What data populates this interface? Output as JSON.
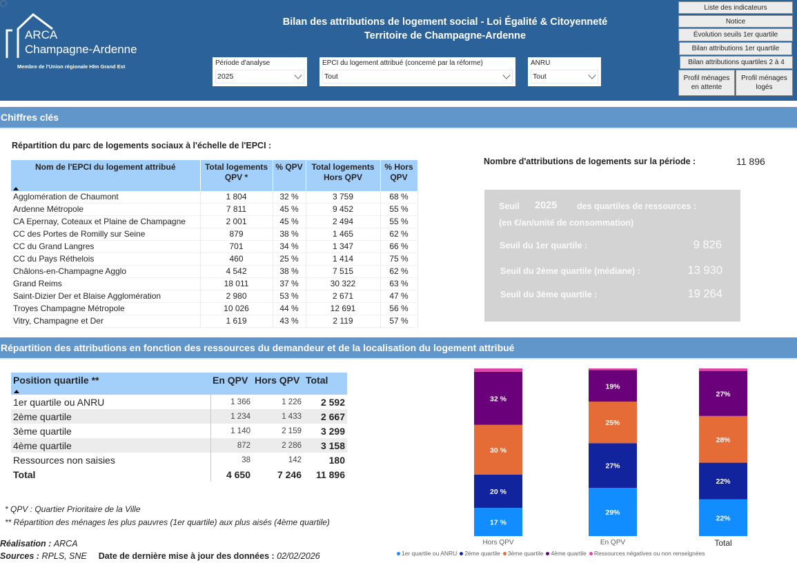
{
  "header": {
    "logo": {
      "line1": "ARCA",
      "line2": "Champagne-Ardenne",
      "tagline": "Membre de l'Union régionale Hlm Grand Est"
    },
    "title_line1": "Bilan des attributions de logement social - Loi Égalité & Citoyenneté",
    "title_line2": "Territoire de Champagne-Ardenne",
    "slicers": [
      {
        "label": "Période d'analyse",
        "value": "2025"
      },
      {
        "label": "EPCI du logement attribué (concerné par la réforme)",
        "value": "Tout"
      },
      {
        "label": "ANRU",
        "value": "Tout"
      }
    ],
    "nav_buttons": [
      "Liste des indicateurs",
      "Notice",
      "Évolution seuils 1er quartile",
      "Bilan attributions 1er quartile",
      "Bilan attributions quartiles 2 à 4",
      "Profil ménages en attente",
      "Profil ménages logés"
    ]
  },
  "section1": {
    "title": "Chiffres clés",
    "subtitle": "Répartition du parc de logements sociaux à l'échelle de l'EPCI :",
    "table": {
      "headers": [
        "Nom de l'EPCI du logement attribué",
        "Total logements QPV *",
        "% QPV",
        "Total logements Hors QPV",
        "% Hors QPV"
      ],
      "rows": [
        [
          "Agglomération de Chaumont",
          "1 804",
          "32 %",
          "3 759",
          "68 %"
        ],
        [
          "Ardenne Métropole",
          "7 811",
          "45 %",
          "9 452",
          "55 %"
        ],
        [
          "CA Epernay, Coteaux et Plaine de Champagne",
          "2 001",
          "45 %",
          "2 494",
          "55 %"
        ],
        [
          "CC des Portes de Romilly sur Seine",
          "879",
          "38 %",
          "1 465",
          "62 %"
        ],
        [
          "CC du Grand Langres",
          "701",
          "34 %",
          "1 347",
          "66 %"
        ],
        [
          "CC du Pays Réthelois",
          "460",
          "25 %",
          "1 414",
          "75 %"
        ],
        [
          "Châlons-en-Champagne Agglo",
          "4 542",
          "38 %",
          "7 515",
          "62 %"
        ],
        [
          "Grand Reims",
          "18 011",
          "37 %",
          "30 322",
          "63 %"
        ],
        [
          "Saint-Dizier Der et Blaise Agglomération",
          "2 980",
          "53 %",
          "2 671",
          "47 %"
        ],
        [
          "Troyes Champagne Métropole",
          "10 026",
          "44 %",
          "12 691",
          "56 %"
        ],
        [
          "Vitry, Champagne et Der",
          "1 619",
          "43 %",
          "2 119",
          "57 %"
        ]
      ]
    },
    "kpi": {
      "label": "Nombre d'attributions de logements sur la période :",
      "value": "11 896"
    },
    "seuils": {
      "title_prefix": "Seuil",
      "year": "2025",
      "title_suffix": "des quartiles de ressources :",
      "unit": "(en €/an/unité de consommation)",
      "items": [
        {
          "label": "Seuil du 1er quartile :",
          "value": "9 826"
        },
        {
          "label": "Seuil du 2ème quartile (médiane) :",
          "value": "13 930"
        },
        {
          "label": "Seuil du 3ème quartile :",
          "value": "19 264"
        }
      ]
    }
  },
  "section2": {
    "title": "Répartition des attributions en fonction des ressources du demandeur et de la localisation du logement attribué",
    "table": {
      "headers": [
        "Position quartile **",
        "En QPV",
        "Hors QPV",
        "Total"
      ],
      "rows": [
        [
          "1er quartile ou ANRU",
          "1 366",
          "1 226",
          "2 592"
        ],
        [
          "2ème quartile",
          "1 234",
          "1 433",
          "2 667"
        ],
        [
          "3ème quartile",
          "1 140",
          "2 159",
          "3 299"
        ],
        [
          "4ème quartile",
          "872",
          "2 286",
          "3 158"
        ],
        [
          "Ressources non saisies",
          "38",
          "142",
          "180"
        ]
      ],
      "total": [
        "Total",
        "4 650",
        "7 246",
        "11 896"
      ]
    },
    "notes": [
      "* QPV : Quartier Prioritaire de la Ville",
      "** Répartition des ménages les plus pauvres (1er quartile) aux plus aisés (4ème quartile)"
    ],
    "credits": {
      "realisation_label": "Réalisation :",
      "realisation_value": "ARCA",
      "sources_label": "Sources :",
      "sources_value": "RPLS, SNE",
      "update_label": "Date de dernière mise à jour des données :",
      "update_value": "02/02/2026"
    }
  },
  "chart_data": {
    "type": "bar",
    "stacked": "100%",
    "categories": [
      "Hors QPV",
      "En QPV",
      "Total"
    ],
    "series": [
      {
        "name": "1er quartile ou ANRU",
        "color": "#118dff",
        "values": [
          17,
          29,
          22
        ],
        "labels": [
          "17 %",
          "29%",
          "22%"
        ]
      },
      {
        "name": "2ème quartile",
        "color": "#12239e",
        "values": [
          20,
          27,
          22
        ],
        "labels": [
          "20 %",
          "27%",
          "22%"
        ]
      },
      {
        "name": "3ème quartile",
        "color": "#e66c37",
        "values": [
          30,
          25,
          28
        ],
        "labels": [
          "30 %",
          "25%",
          "28%"
        ]
      },
      {
        "name": "4ème quartile",
        "color": "#6b007b",
        "values": [
          32,
          19,
          27
        ],
        "labels": [
          "32 %",
          "19%",
          "27%"
        ]
      },
      {
        "name": "Ressources négatives ou non renseignées",
        "color": "#e044a7",
        "values": [
          2,
          1,
          1.5
        ],
        "labels": [
          "",
          "",
          ""
        ]
      }
    ],
    "legend_position": "bottom",
    "ylim": [
      0,
      100
    ]
  }
}
